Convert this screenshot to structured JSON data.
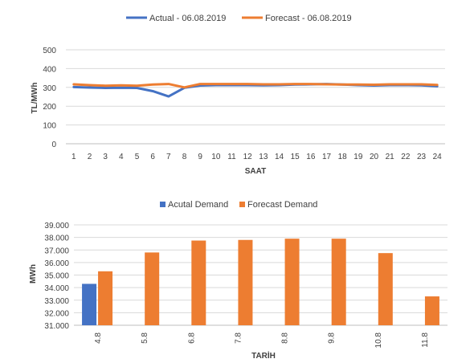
{
  "chart_data": [
    {
      "type": "line",
      "title": "",
      "xlabel": "SAAT",
      "ylabel": "TL/MWh",
      "ylim": [
        0,
        500
      ],
      "yticks": [
        "0",
        "100",
        "200",
        "300",
        "400",
        "500"
      ],
      "x": [
        "1",
        "2",
        "3",
        "4",
        "5",
        "6",
        "7",
        "8",
        "9",
        "10",
        "11",
        "12",
        "13",
        "14",
        "15",
        "16",
        "17",
        "18",
        "19",
        "20",
        "21",
        "22",
        "23",
        "24"
      ],
      "grid": true,
      "legend": "top",
      "series": [
        {
          "name": "Actual - 06.08.2019",
          "color": "#4472c4",
          "values": [
            302,
            299,
            297,
            298,
            297,
            280,
            252,
            298,
            310,
            312,
            312,
            312,
            311,
            312,
            315,
            316,
            318,
            315,
            312,
            310,
            312,
            312,
            311,
            306
          ]
        },
        {
          "name": "Forecast - 06.08.2019",
          "color": "#ed7d31",
          "values": [
            316,
            312,
            309,
            311,
            309,
            315,
            318,
            300,
            318,
            318,
            318,
            318,
            316,
            316,
            318,
            318,
            316,
            315,
            315,
            314,
            316,
            316,
            316,
            313
          ]
        }
      ]
    },
    {
      "type": "bar",
      "title": "",
      "xlabel": "TARİH",
      "ylabel": "MWh",
      "ylim": [
        31000,
        39000
      ],
      "yticks": [
        "31.000",
        "32.000",
        "33.000",
        "34.000",
        "35.000",
        "36.000",
        "37.000",
        "38.000",
        "39.000"
      ],
      "categories": [
        "4.8",
        "5.8",
        "6.8",
        "7.8",
        "8.8",
        "9.8",
        "10.8",
        "11.8"
      ],
      "grid": true,
      "legend": "top",
      "series": [
        {
          "name": "Acutal Demand",
          "color": "#4472c4",
          "values": [
            34300,
            null,
            null,
            null,
            null,
            null,
            null,
            null
          ]
        },
        {
          "name": "Forecast Demand",
          "color": "#ed7d31",
          "values": [
            35300,
            36800,
            37750,
            37800,
            37900,
            37900,
            36750,
            33300
          ]
        }
      ]
    }
  ]
}
